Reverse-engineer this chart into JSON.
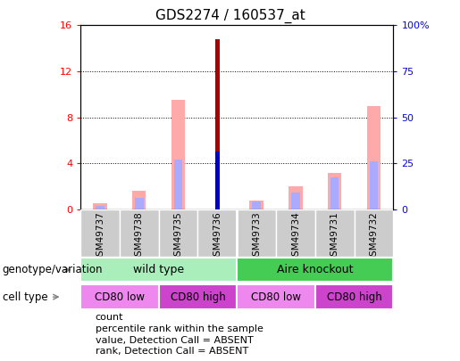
{
  "title": "GDS2274 / 160537_at",
  "samples": [
    "GSM49737",
    "GSM49738",
    "GSM49735",
    "GSM49736",
    "GSM49733",
    "GSM49734",
    "GSM49731",
    "GSM49732"
  ],
  "count_values": [
    0,
    0,
    0,
    14.8,
    0,
    0,
    0,
    0
  ],
  "rank_values": [
    0,
    0,
    0,
    5.0,
    0,
    0,
    0,
    0
  ],
  "absent_value": [
    0.5,
    1.6,
    9.5,
    0,
    0.8,
    2.0,
    3.2,
    9.0
  ],
  "absent_rank": [
    0.3,
    1.0,
    4.3,
    0,
    0.7,
    1.5,
    2.8,
    4.2
  ],
  "ylim_left": [
    0,
    16
  ],
  "ylim_right": [
    0,
    100
  ],
  "yticks_left": [
    0,
    4,
    8,
    12,
    16
  ],
  "yticks_right": [
    0,
    25,
    50,
    75,
    100
  ],
  "yticklabels_right": [
    "0",
    "25",
    "50",
    "75",
    "100%"
  ],
  "color_count": "#aa0000",
  "color_rank": "#0000cc",
  "color_absent_value": "#ffaaaa",
  "color_absent_rank": "#aaaaff",
  "legend_items": [
    {
      "label": "count",
      "color": "#aa0000"
    },
    {
      "label": "percentile rank within the sample",
      "color": "#0000cc"
    },
    {
      "label": "value, Detection Call = ABSENT",
      "color": "#ffaaaa"
    },
    {
      "label": "rank, Detection Call = ABSENT",
      "color": "#aaaaff"
    }
  ],
  "left_label_genotype": "genotype/variation",
  "left_label_cell": "cell type",
  "bg_color": "#cccccc",
  "genotype_wt_color": "#aaeebb",
  "genotype_ko_color": "#44cc55",
  "cell_low_color": "#ee88ee",
  "cell_high_color": "#cc44cc"
}
